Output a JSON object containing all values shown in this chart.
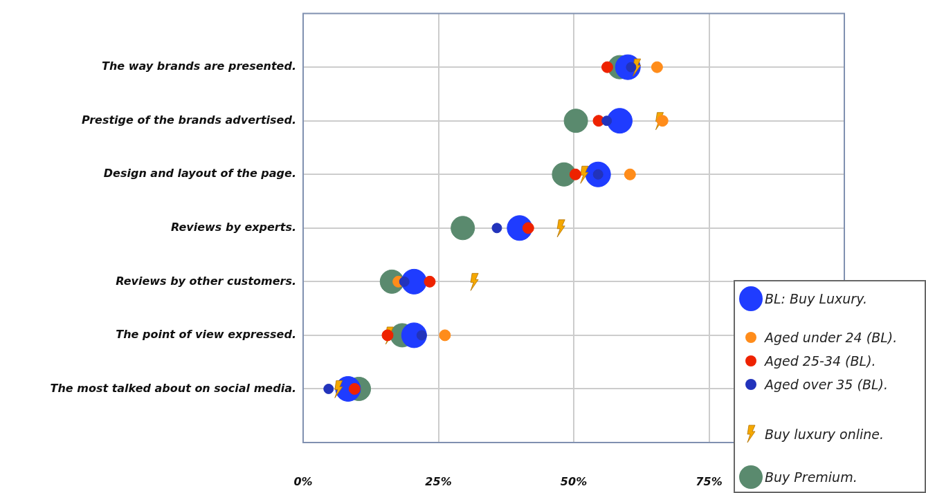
{
  "chart_data": {
    "type": "scatter",
    "orientation": "horizontal",
    "categories": [
      "The way brands are presented.",
      "Prestige of the brands advertised.",
      "Design and layout of the page.",
      "Reviews by experts.",
      "Reviews by other customers.",
      "The point of view expressed.",
      "The most talked about on social media."
    ],
    "series": [
      {
        "name": "BL: Buy Luxury.",
        "color": "#1f3cff",
        "marker": "circle",
        "values": [
          60,
          58.5,
          54.5,
          40,
          20.5,
          20.5,
          8.3
        ]
      },
      {
        "name": "Aged under 24 (BL).",
        "color": "#ff8c1a",
        "marker": "circle",
        "values": [
          65.4,
          66.4,
          60.4,
          null,
          17.6,
          26.2,
          null
        ]
      },
      {
        "name": "Aged 25-34 (BL).",
        "color": "#ee2200",
        "marker": "circle",
        "values": [
          56.2,
          54.6,
          50.3,
          41.6,
          23.4,
          15.6,
          9.5
        ]
      },
      {
        "name": "Aged over 35 (BL).",
        "color": "#2233bb",
        "marker": "circle",
        "values": [
          60.6,
          56.1,
          54.5,
          35.8,
          18.7,
          21.9,
          4.7
        ]
      },
      {
        "name": "Buy luxury online.",
        "color": "#f5a800",
        "values": [
          61.6,
          65.8,
          51.9,
          47.6,
          31.6,
          15.9,
          6.5
        ]
      },
      {
        "name": "Buy Premium.",
        "color": "#5a8a6e",
        "marker": "circle",
        "values": [
          58.5,
          50.4,
          48.2,
          29.5,
          16.4,
          18.3,
          10.3
        ]
      }
    ],
    "xlim": [
      0,
      100
    ],
    "xticks": [
      {
        "value": 0,
        "label": "0%"
      },
      {
        "value": 25,
        "label": "25%"
      },
      {
        "value": 50,
        "label": "50%"
      },
      {
        "value": 75,
        "label": "75%"
      },
      {
        "value": 100,
        "label": null
      }
    ],
    "grid": true,
    "legend": "bottom right"
  }
}
